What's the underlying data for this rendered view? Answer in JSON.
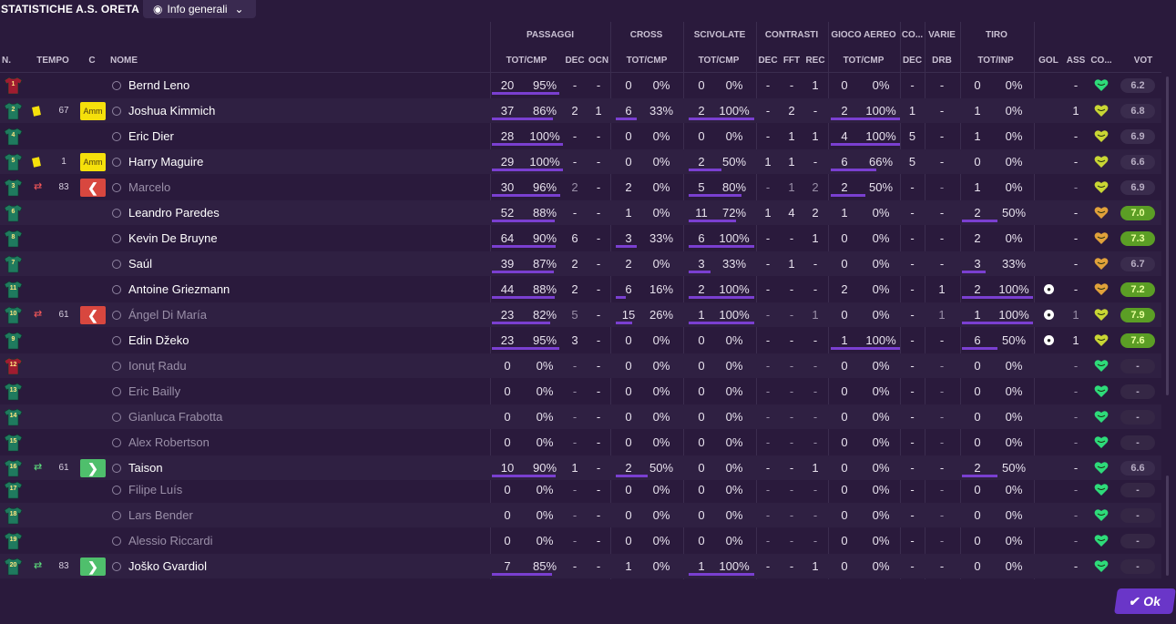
{
  "title": "STATISTICHE A.S. ORETA",
  "view_button": {
    "label": "Info generali",
    "icon": "eye-icon"
  },
  "groups": [
    "PASSAGGI",
    "CROSS",
    "SCIVOLATE",
    "CONTRASTI",
    "GIOCO AEREO",
    "CO...",
    "VARIE",
    "TIRO"
  ],
  "columns": {
    "n": "N.",
    "tempo": "TEMPO",
    "c": "C",
    "nome": "NOME",
    "pass_totcmp": "TOT/CMP",
    "pass_dec": "DEC",
    "pass_ocn": "OCN",
    "cross_totcmp": "TOT/CMP",
    "sciv_totcmp": "TOT/CMP",
    "contr_dec": "DEC",
    "contr_fft": "FFT",
    "contr_rec": "REC",
    "aereo_totcmp": "TOT/CMP",
    "co_dec": "DEC",
    "varie_drb": "DRB",
    "tiro_totinp": "TOT/INP",
    "gol": "GOL",
    "ass": "ASS",
    "co": "CO...",
    "vot": "VOT"
  },
  "colors": {
    "background": "#2a1a3c",
    "bar": "#7a3fd0",
    "home_shirt": "#1f7a5e",
    "gk_shirt": "#a01c30",
    "heart_green": "#2edb7a",
    "heart_yellow": "#c9d634",
    "heart_orange": "#e0a13a"
  },
  "players": [
    {
      "num": "1",
      "gk": true,
      "card": "",
      "swap": "",
      "minute": "",
      "event": "",
      "name": "Bernd Leno",
      "inactive": false,
      "pt": "20",
      "pc": "95%",
      "pdec": "-",
      "pocn": "-",
      "ct": "0",
      "cc": "0%",
      "st": "0",
      "sc": "0%",
      "kd": "-",
      "kf": "-",
      "kr": "1",
      "at": "0",
      "ac": "0%",
      "codec": "-",
      "drb": "-",
      "tt": "0",
      "tc": "0%",
      "gol": "",
      "ass": "-",
      "mood": "green",
      "vot": "6.2",
      "votstyle": "plain",
      "pbar": 0.95,
      "cbar": 0,
      "sbar": 0,
      "abar": 0,
      "tbar": 0
    },
    {
      "num": "2",
      "gk": false,
      "card": "yellow",
      "swap": "",
      "minute": "67",
      "event": "Amm",
      "name": "Joshua Kimmich",
      "inactive": false,
      "pt": "37",
      "pc": "86%",
      "pdec": "2",
      "pocn": "1",
      "ct": "6",
      "cc": "33%",
      "st": "2",
      "sc": "100%",
      "kd": "-",
      "kf": "2",
      "kr": "-",
      "at": "2",
      "ac": "100%",
      "codec": "1",
      "drb": "-",
      "tt": "1",
      "tc": "0%",
      "gol": "",
      "ass": "1",
      "mood": "yellow",
      "vot": "6.8",
      "votstyle": "plain",
      "pbar": 0.86,
      "cbar": 0.33,
      "sbar": 1,
      "abar": 1,
      "tbar": 0
    },
    {
      "num": "4",
      "gk": false,
      "card": "",
      "swap": "",
      "minute": "",
      "event": "",
      "name": "Eric Dier",
      "inactive": false,
      "pt": "28",
      "pc": "100%",
      "pdec": "-",
      "pocn": "-",
      "ct": "0",
      "cc": "0%",
      "st": "0",
      "sc": "0%",
      "kd": "-",
      "kf": "1",
      "kr": "1",
      "at": "4",
      "ac": "100%",
      "codec": "5",
      "drb": "-",
      "tt": "1",
      "tc": "0%",
      "gol": "",
      "ass": "-",
      "mood": "yellow",
      "vot": "6.9",
      "votstyle": "plain",
      "pbar": 1,
      "cbar": 0,
      "sbar": 0,
      "abar": 1,
      "tbar": 0
    },
    {
      "num": "5",
      "gk": false,
      "card": "yellow",
      "swap": "",
      "minute": "1",
      "event": "Amm",
      "name": "Harry Maguire",
      "inactive": false,
      "pt": "29",
      "pc": "100%",
      "pdec": "-",
      "pocn": "-",
      "ct": "0",
      "cc": "0%",
      "st": "2",
      "sc": "50%",
      "kd": "1",
      "kf": "1",
      "kr": "-",
      "at": "6",
      "ac": "66%",
      "codec": "5",
      "drb": "-",
      "tt": "0",
      "tc": "0%",
      "gol": "",
      "ass": "-",
      "mood": "yellow",
      "vot": "6.6",
      "votstyle": "plain",
      "pbar": 1,
      "cbar": 0,
      "sbar": 0.5,
      "abar": 0.66,
      "tbar": 0
    },
    {
      "num": "3",
      "gk": false,
      "card": "",
      "swap": "out",
      "minute": "83",
      "event": "out",
      "name": "Marcelo",
      "inactive": true,
      "pt": "30",
      "pc": "96%",
      "pdec": "2",
      "pocn": "-",
      "ct": "2",
      "cc": "0%",
      "st": "5",
      "sc": "80%",
      "kd": "-",
      "kf": "1",
      "kr": "2",
      "at": "2",
      "ac": "50%",
      "codec": "-",
      "drb": "-",
      "tt": "1",
      "tc": "0%",
      "gol": "",
      "ass": "-",
      "mood": "yellow",
      "vot": "6.9",
      "votstyle": "plain",
      "pbar": 0.96,
      "cbar": 0,
      "sbar": 0.8,
      "abar": 0.5,
      "tbar": 0
    },
    {
      "num": "6",
      "gk": false,
      "card": "",
      "swap": "",
      "minute": "",
      "event": "",
      "name": "Leandro Paredes",
      "inactive": false,
      "pt": "52",
      "pc": "88%",
      "pdec": "-",
      "pocn": "-",
      "ct": "1",
      "cc": "0%",
      "st": "11",
      "sc": "72%",
      "kd": "1",
      "kf": "4",
      "kr": "2",
      "at": "1",
      "ac": "0%",
      "codec": "-",
      "drb": "-",
      "tt": "2",
      "tc": "50%",
      "gol": "",
      "ass": "-",
      "mood": "orange",
      "vot": "7.0",
      "votstyle": "good",
      "pbar": 0.88,
      "cbar": 0,
      "sbar": 0.72,
      "abar": 0,
      "tbar": 0.5
    },
    {
      "num": "8",
      "gk": false,
      "card": "",
      "swap": "",
      "minute": "",
      "event": "",
      "name": "Kevin De Bruyne",
      "inactive": false,
      "pt": "64",
      "pc": "90%",
      "pdec": "6",
      "pocn": "-",
      "ct": "3",
      "cc": "33%",
      "st": "6",
      "sc": "100%",
      "kd": "-",
      "kf": "-",
      "kr": "1",
      "at": "0",
      "ac": "0%",
      "codec": "-",
      "drb": "-",
      "tt": "2",
      "tc": "0%",
      "gol": "",
      "ass": "-",
      "mood": "orange",
      "vot": "7.3",
      "votstyle": "good",
      "pbar": 0.9,
      "cbar": 0.33,
      "sbar": 1,
      "abar": 0,
      "tbar": 0
    },
    {
      "num": "7",
      "gk": false,
      "card": "",
      "swap": "",
      "minute": "",
      "event": "",
      "name": "Saúl",
      "inactive": false,
      "pt": "39",
      "pc": "87%",
      "pdec": "2",
      "pocn": "-",
      "ct": "2",
      "cc": "0%",
      "st": "3",
      "sc": "33%",
      "kd": "-",
      "kf": "1",
      "kr": "-",
      "at": "0",
      "ac": "0%",
      "codec": "-",
      "drb": "-",
      "tt": "3",
      "tc": "33%",
      "gol": "",
      "ass": "-",
      "mood": "orange",
      "vot": "6.7",
      "votstyle": "plain",
      "pbar": 0.87,
      "cbar": 0,
      "sbar": 0.33,
      "abar": 0,
      "tbar": 0.33
    },
    {
      "num": "11",
      "gk": false,
      "card": "",
      "swap": "",
      "minute": "",
      "event": "",
      "name": "Antoine Griezmann",
      "inactive": false,
      "pt": "44",
      "pc": "88%",
      "pdec": "2",
      "pocn": "-",
      "ct": "6",
      "cc": "16%",
      "st": "2",
      "sc": "100%",
      "kd": "-",
      "kf": "-",
      "kr": "-",
      "at": "2",
      "ac": "0%",
      "codec": "-",
      "drb": "1",
      "tt": "2",
      "tc": "100%",
      "gol": "ball",
      "ass": "-",
      "mood": "orange",
      "vot": "7.2",
      "votstyle": "good",
      "pbar": 0.88,
      "cbar": 0.16,
      "sbar": 1,
      "abar": 0,
      "tbar": 1
    },
    {
      "num": "10",
      "gk": false,
      "card": "",
      "swap": "out",
      "minute": "61",
      "event": "out",
      "name": "Ángel Di María",
      "inactive": true,
      "pt": "23",
      "pc": "82%",
      "pdec": "5",
      "pocn": "-",
      "ct": "15",
      "cc": "26%",
      "st": "1",
      "sc": "100%",
      "kd": "-",
      "kf": "-",
      "kr": "1",
      "at": "0",
      "ac": "0%",
      "codec": "-",
      "drb": "1",
      "tt": "1",
      "tc": "100%",
      "gol": "ball",
      "ass": "1",
      "mood": "yellow",
      "vot": "7.9",
      "votstyle": "good",
      "pbar": 0.82,
      "cbar": 0.26,
      "sbar": 1,
      "abar": 0,
      "tbar": 1
    },
    {
      "num": "9",
      "gk": false,
      "card": "",
      "swap": "",
      "minute": "",
      "event": "",
      "name": "Edin Džeko",
      "inactive": false,
      "pt": "23",
      "pc": "95%",
      "pdec": "3",
      "pocn": "-",
      "ct": "0",
      "cc": "0%",
      "st": "0",
      "sc": "0%",
      "kd": "-",
      "kf": "-",
      "kr": "-",
      "at": "1",
      "ac": "100%",
      "codec": "-",
      "drb": "-",
      "tt": "6",
      "tc": "50%",
      "gol": "ball",
      "ass": "1",
      "mood": "yellow",
      "vot": "7.6",
      "votstyle": "good",
      "pbar": 0.95,
      "cbar": 0,
      "sbar": 0,
      "abar": 1,
      "tbar": 0.5
    },
    {
      "num": "12",
      "gk": true,
      "card": "",
      "swap": "",
      "minute": "",
      "event": "",
      "name": "Ionuț Radu",
      "inactive": true,
      "pt": "0",
      "pc": "0%",
      "pdec": "-",
      "pocn": "-",
      "ct": "0",
      "cc": "0%",
      "st": "0",
      "sc": "0%",
      "kd": "-",
      "kf": "-",
      "kr": "-",
      "at": "0",
      "ac": "0%",
      "codec": "-",
      "drb": "-",
      "tt": "0",
      "tc": "0%",
      "gol": "",
      "ass": "-",
      "mood": "green",
      "vot": "-",
      "votstyle": "none",
      "pbar": 0,
      "cbar": 0,
      "sbar": 0,
      "abar": 0,
      "tbar": 0
    },
    {
      "num": "13",
      "gk": false,
      "card": "",
      "swap": "",
      "minute": "",
      "event": "",
      "name": "Eric Bailly",
      "inactive": true,
      "pt": "0",
      "pc": "0%",
      "pdec": "-",
      "pocn": "-",
      "ct": "0",
      "cc": "0%",
      "st": "0",
      "sc": "0%",
      "kd": "-",
      "kf": "-",
      "kr": "-",
      "at": "0",
      "ac": "0%",
      "codec": "-",
      "drb": "-",
      "tt": "0",
      "tc": "0%",
      "gol": "",
      "ass": "-",
      "mood": "green",
      "vot": "-",
      "votstyle": "none",
      "pbar": 0,
      "cbar": 0,
      "sbar": 0,
      "abar": 0,
      "tbar": 0
    },
    {
      "num": "14",
      "gk": false,
      "card": "",
      "swap": "",
      "minute": "",
      "event": "",
      "name": "Gianluca Frabotta",
      "inactive": true,
      "pt": "0",
      "pc": "0%",
      "pdec": "-",
      "pocn": "-",
      "ct": "0",
      "cc": "0%",
      "st": "0",
      "sc": "0%",
      "kd": "-",
      "kf": "-",
      "kr": "-",
      "at": "0",
      "ac": "0%",
      "codec": "-",
      "drb": "-",
      "tt": "0",
      "tc": "0%",
      "gol": "",
      "ass": "-",
      "mood": "green",
      "vot": "-",
      "votstyle": "none",
      "pbar": 0,
      "cbar": 0,
      "sbar": 0,
      "abar": 0,
      "tbar": 0
    },
    {
      "num": "15",
      "gk": false,
      "card": "",
      "swap": "",
      "minute": "",
      "event": "",
      "name": "Alex Robertson",
      "inactive": true,
      "pt": "0",
      "pc": "0%",
      "pdec": "-",
      "pocn": "-",
      "ct": "0",
      "cc": "0%",
      "st": "0",
      "sc": "0%",
      "kd": "-",
      "kf": "-",
      "kr": "-",
      "at": "0",
      "ac": "0%",
      "codec": "-",
      "drb": "-",
      "tt": "0",
      "tc": "0%",
      "gol": "",
      "ass": "-",
      "mood": "green",
      "vot": "-",
      "votstyle": "none",
      "pbar": 0,
      "cbar": 0,
      "sbar": 0,
      "abar": 0,
      "tbar": 0
    },
    {
      "num": "16",
      "gk": false,
      "card": "",
      "swap": "in",
      "minute": "61",
      "event": "in",
      "name": "Taison",
      "inactive": false,
      "pt": "10",
      "pc": "90%",
      "pdec": "1",
      "pocn": "-",
      "ct": "2",
      "cc": "50%",
      "st": "0",
      "sc": "0%",
      "kd": "-",
      "kf": "-",
      "kr": "1",
      "at": "0",
      "ac": "0%",
      "codec": "-",
      "drb": "-",
      "tt": "2",
      "tc": "50%",
      "gol": "",
      "ass": "-",
      "mood": "green",
      "vot": "6.6",
      "votstyle": "plain",
      "pbar": 0.9,
      "cbar": 0.5,
      "sbar": 0,
      "abar": 0,
      "tbar": 0.5
    },
    {
      "num": "17",
      "gk": false,
      "card": "",
      "swap": "",
      "minute": "",
      "event": "",
      "name": "Filipe Luís",
      "inactive": true,
      "pt": "0",
      "pc": "0%",
      "pdec": "-",
      "pocn": "-",
      "ct": "0",
      "cc": "0%",
      "st": "0",
      "sc": "0%",
      "kd": "-",
      "kf": "-",
      "kr": "-",
      "at": "0",
      "ac": "0%",
      "codec": "-",
      "drb": "-",
      "tt": "0",
      "tc": "0%",
      "gol": "",
      "ass": "-",
      "mood": "green",
      "vot": "-",
      "votstyle": "none",
      "pbar": 0,
      "cbar": 0,
      "sbar": 0,
      "abar": 0,
      "tbar": 0
    },
    {
      "num": "18",
      "gk": false,
      "card": "",
      "swap": "",
      "minute": "",
      "event": "",
      "name": "Lars Bender",
      "inactive": true,
      "pt": "0",
      "pc": "0%",
      "pdec": "-",
      "pocn": "-",
      "ct": "0",
      "cc": "0%",
      "st": "0",
      "sc": "0%",
      "kd": "-",
      "kf": "-",
      "kr": "-",
      "at": "0",
      "ac": "0%",
      "codec": "-",
      "drb": "-",
      "tt": "0",
      "tc": "0%",
      "gol": "",
      "ass": "-",
      "mood": "green",
      "vot": "-",
      "votstyle": "none",
      "pbar": 0,
      "cbar": 0,
      "sbar": 0,
      "abar": 0,
      "tbar": 0
    },
    {
      "num": "19",
      "gk": false,
      "card": "",
      "swap": "",
      "minute": "",
      "event": "",
      "name": "Alessio Riccardi",
      "inactive": true,
      "pt": "0",
      "pc": "0%",
      "pdec": "-",
      "pocn": "-",
      "ct": "0",
      "cc": "0%",
      "st": "0",
      "sc": "0%",
      "kd": "-",
      "kf": "-",
      "kr": "-",
      "at": "0",
      "ac": "0%",
      "codec": "-",
      "drb": "-",
      "tt": "0",
      "tc": "0%",
      "gol": "",
      "ass": "-",
      "mood": "green",
      "vot": "-",
      "votstyle": "none",
      "pbar": 0,
      "cbar": 0,
      "sbar": 0,
      "abar": 0,
      "tbar": 0
    },
    {
      "num": "20",
      "gk": false,
      "card": "",
      "swap": "in",
      "minute": "83",
      "event": "in",
      "name": "Joško Gvardiol",
      "inactive": false,
      "pt": "7",
      "pc": "85%",
      "pdec": "-",
      "pocn": "-",
      "ct": "1",
      "cc": "0%",
      "st": "1",
      "sc": "100%",
      "kd": "-",
      "kf": "-",
      "kr": "1",
      "at": "0",
      "ac": "0%",
      "codec": "-",
      "drb": "-",
      "tt": "0",
      "tc": "0%",
      "gol": "",
      "ass": "-",
      "mood": "green",
      "vot": "-",
      "votstyle": "none",
      "pbar": 0.85,
      "cbar": 0,
      "sbar": 1,
      "abar": 0,
      "tbar": 0
    }
  ],
  "ok_button": {
    "label": "Ok",
    "icon": "check-icon"
  }
}
